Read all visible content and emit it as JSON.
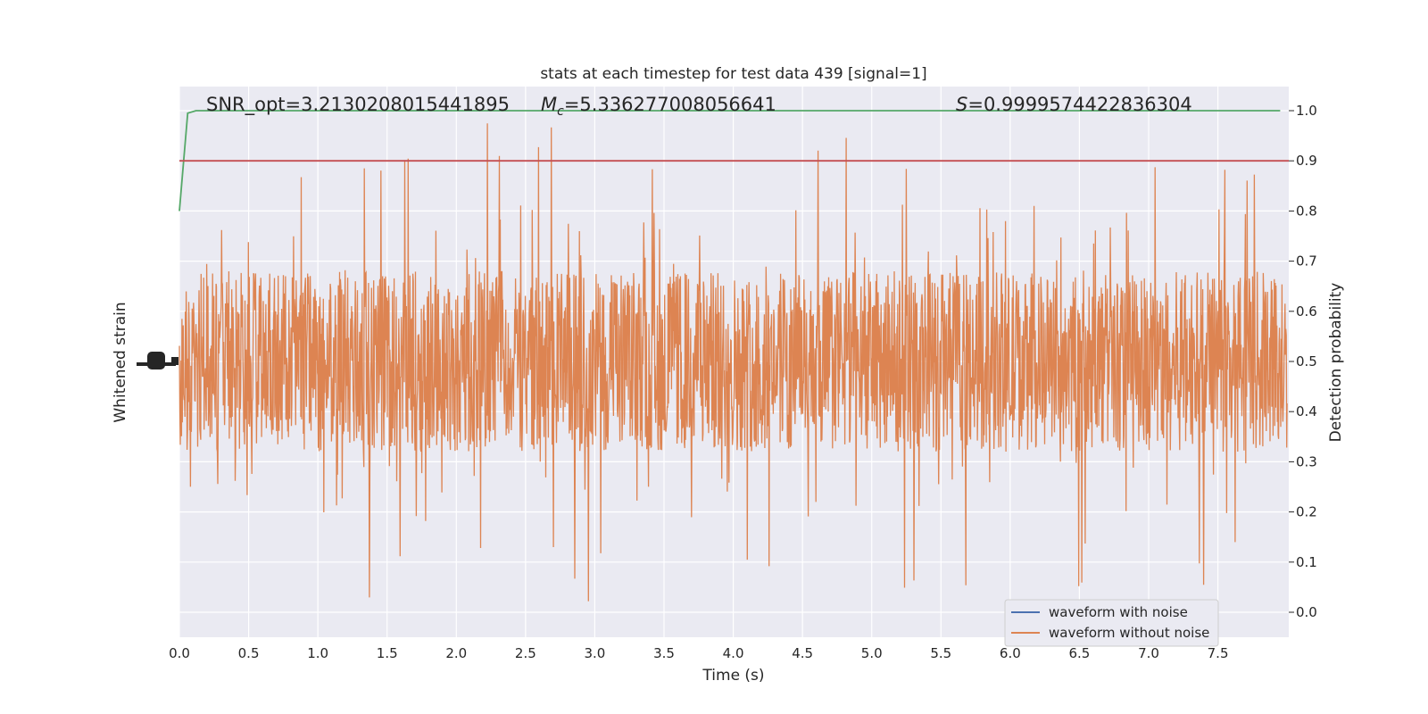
{
  "chart_data": {
    "type": "line",
    "title": "stats at each timestep for test data 439 [signal=1]",
    "xlabel": "Time (s)",
    "ylabel_left": "Whitened strain",
    "ylabel_right": "Detection probability",
    "xlim": [
      0,
      8.0
    ],
    "ylim_right": [
      -0.05,
      1.05
    ],
    "x_ticks": [
      "0.0",
      "0.5",
      "1.0",
      "1.5",
      "2.0",
      "2.5",
      "3.0",
      "3.5",
      "4.0",
      "4.5",
      "5.0",
      "5.5",
      "6.0",
      "6.5",
      "7.0",
      "7.5"
    ],
    "x_tick_values": [
      0,
      0.5,
      1.0,
      1.5,
      2.0,
      2.5,
      3.0,
      3.5,
      4.0,
      4.5,
      5.0,
      5.5,
      6.0,
      6.5,
      7.0,
      7.5
    ],
    "right_ticks": [
      "0.0",
      "0.1",
      "0.2",
      "0.3",
      "0.4",
      "0.5",
      "0.6",
      "0.7",
      "0.8",
      "0.9",
      "1.0"
    ],
    "right_tick_values": [
      0,
      0.1,
      0.2,
      0.3,
      0.4,
      0.5,
      0.6,
      0.7,
      0.8,
      0.9,
      1.0
    ],
    "annotations": {
      "snr": "SNR_opt=3.2130208015441895",
      "mc_symbol": "M",
      "mc_sub": "c",
      "mc_value": "=5.336277008056641",
      "s_symbol": "S",
      "s_value": "=0.9999574422836304"
    },
    "legend": {
      "placement": "lower-right",
      "entries": [
        "waveform with noise",
        "waveform without noise"
      ]
    },
    "series": [
      {
        "name": "waveform with noise",
        "color": "#4c72b0"
      },
      {
        "name": "waveform without noise",
        "color": "#dd8452",
        "center": 0.5,
        "spread_typical": 0.2,
        "spread_max": 0.48
      },
      {
        "color": "#55a868",
        "x": [
          0,
          0.06,
          0.12,
          7.95
        ],
        "y": [
          0.8,
          0.995,
          1.0,
          1.0
        ]
      },
      {
        "color": "#c44e52",
        "y_constant": 0.9
      }
    ],
    "grid": true,
    "background": "#eaeaf2"
  }
}
